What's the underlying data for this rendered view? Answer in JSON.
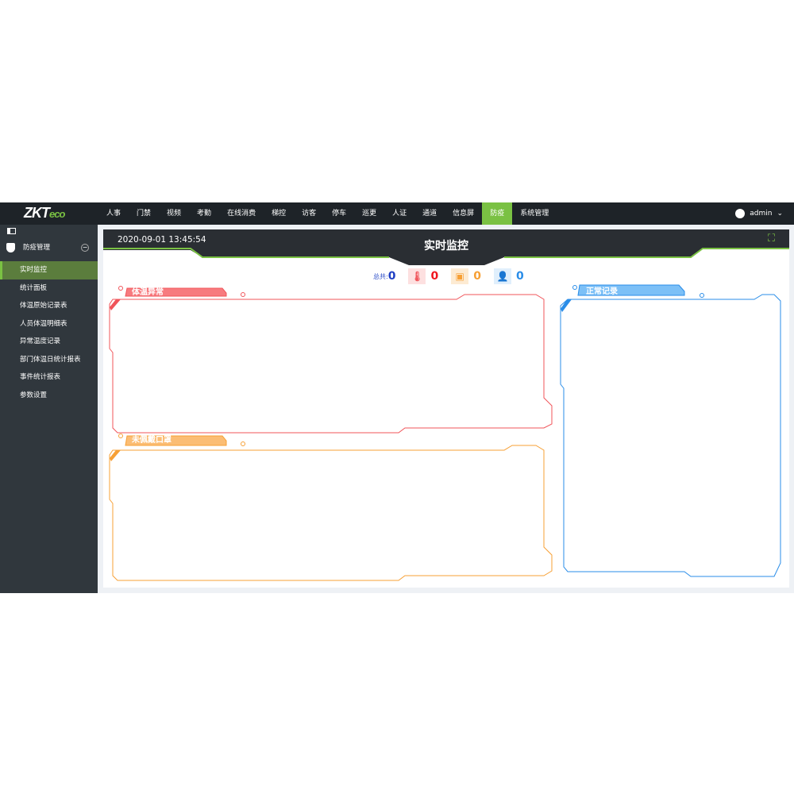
{
  "app": {
    "logo_main": "ZKT",
    "logo_sub": "eco"
  },
  "nav": {
    "items": [
      "人事",
      "门禁",
      "视频",
      "考勤",
      "在线消费",
      "梯控",
      "访客",
      "停车",
      "巡更",
      "人证",
      "通道",
      "信息屏",
      "防疫",
      "系统管理"
    ],
    "active": "防疫"
  },
  "user": {
    "name": "admin"
  },
  "sidebar": {
    "group": "防疫管理",
    "items": [
      "实时监控",
      "统计面板",
      "体温原始记录表",
      "人员体温明细表",
      "异常温度记录",
      "部门体温日统计报表",
      "事件统计报表",
      "参数设置"
    ],
    "active": "实时监控"
  },
  "header": {
    "datetime": "2020-09-01 13:45:54",
    "title": "实时监控"
  },
  "stats": {
    "total_label": "总共:",
    "total": "0",
    "abnormal_temp": "0",
    "no_mask": "0",
    "normal": "0"
  },
  "panels": {
    "abnormal": "体温异常",
    "no_mask": "未佩戴口罩",
    "normal": "正常记录"
  },
  "colors": {
    "accent": "#7ac143",
    "abnormal": "#f0545a",
    "no_mask": "#f7a035",
    "normal": "#2a8de8",
    "total": "#1f3fc4"
  }
}
